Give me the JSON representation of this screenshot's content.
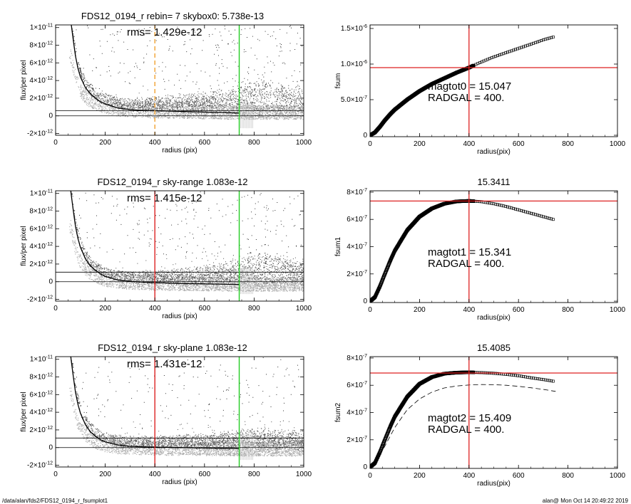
{
  "footer": {
    "left": "/data/alan/fds2/FDS12_0194_r_fsumplot1",
    "right": "alan@  Mon Oct 14 20:49:22 2019"
  },
  "colors": {
    "profile": "#000000",
    "points_dark": "#555555",
    "points_light": "#aaaaaa",
    "red": "#dd2222",
    "green": "#22cc22",
    "orange": "#f0a030"
  },
  "chart_data": [
    {
      "id": "left1",
      "type": "scatter",
      "title": "FDS12_0194_r rebin= 7    skybox0:  5.738e-13",
      "annotation": "rms= 1.429e-12",
      "xlabel": "radius (pix)",
      "ylabel": "flux/per pixel",
      "xlim": [
        0,
        1000
      ],
      "ylim": [
        -2.2e-12,
        1.03e-11
      ],
      "xticks": [
        0,
        200,
        400,
        600,
        800,
        1000
      ],
      "xtick_labels": [
        "0",
        "200",
        "400",
        "600",
        "800",
        "1000"
      ],
      "yticks": [
        -2e-12,
        0,
        2e-12,
        4e-12,
        6e-12,
        8e-12,
        1e-11
      ],
      "ytick_labels": [
        {
          "m": "-2×10",
          "e": "-12"
        },
        {
          "m": "0",
          "e": ""
        },
        {
          "m": "2×10",
          "e": "-12"
        },
        {
          "m": "4×10",
          "e": "-12"
        },
        {
          "m": "6×10",
          "e": "-12"
        },
        {
          "m": "8×10",
          "e": "-12"
        },
        {
          "m": "1×10",
          "e": "-11"
        }
      ],
      "hlines": [
        0,
        5.738e-13
      ],
      "vlines": [
        {
          "x": 400,
          "color": "orange",
          "dashed": true
        },
        {
          "x": 740,
          "color": "green",
          "dashed": false
        }
      ],
      "profile": {
        "x": [
          60,
          70,
          80,
          90,
          100,
          120,
          140,
          160,
          180,
          200,
          250,
          300,
          350,
          400,
          500,
          600,
          700,
          740
        ],
        "y": [
          1.1e-11,
          8.8e-12,
          6.8e-12,
          5.4e-12,
          4.4e-12,
          3.2e-12,
          2.5e-12,
          2e-12,
          1.6e-12,
          1.35e-12,
          9e-13,
          7e-13,
          6.2e-13,
          5.8e-13,
          5e-13,
          4.2e-13,
          3.5e-13,
          3.2e-13
        ]
      },
      "sky_trend": {
        "x": [
          0,
          200,
          400,
          600,
          700,
          780,
          850,
          900,
          1000
        ],
        "y": [
          0,
          3e-13,
          8e-13,
          1.5e-12,
          2.2e-12,
          2.8e-12,
          3e-12,
          2.5e-12,
          2e-12
        ]
      },
      "sky_sub": false
    },
    {
      "id": "right1",
      "type": "line",
      "title": "",
      "annotation_lines": [
        "magtot0 =  15.047",
        "RADGAL =    400."
      ],
      "xlabel": "radius(pix)",
      "ylabel": "fsum",
      "xlim": [
        0,
        1000
      ],
      "ylim": [
        -2e-08,
        1.55e-06
      ],
      "xticks": [
        0,
        200,
        400,
        600,
        800,
        1000
      ],
      "xtick_labels": [
        "0",
        "200",
        "400",
        "600",
        "800",
        "1000"
      ],
      "yticks": [
        0,
        5e-07,
        1e-06,
        1.5e-06
      ],
      "ytick_labels": [
        {
          "m": "0",
          "e": ""
        },
        {
          "m": "5.0×10",
          "e": "-7"
        },
        {
          "m": "1.0×10",
          "e": "-6"
        },
        {
          "m": "1.5×10",
          "e": "-6"
        }
      ],
      "hline": 9.5e-07,
      "vline": 400,
      "curve": {
        "x": [
          0,
          20,
          40,
          60,
          80,
          100,
          150,
          200,
          250,
          300,
          350,
          400,
          450,
          500,
          550,
          600,
          650,
          700,
          740
        ],
        "y": [
          0,
          4e-08,
          1.2e-07,
          2.1e-07,
          2.9e-07,
          3.6e-07,
          5e-07,
          6.2e-07,
          7.2e-07,
          8e-07,
          8.8e-07,
          9.5e-07,
          1.03e-06,
          1.1e-06,
          1.16e-06,
          1.22e-06,
          1.28e-06,
          1.34e-06,
          1.38e-06
        ]
      },
      "model": null
    },
    {
      "id": "left2",
      "type": "scatter",
      "title": "FDS12_0194_r sky-range  1.083e-12",
      "annotation": "rms= 1.415e-12",
      "xlabel": "radius (pix)",
      "ylabel": "flux/per pixel",
      "xlim": [
        0,
        1000
      ],
      "ylim": [
        -2.2e-12,
        1.03e-11
      ],
      "xticks": [
        0,
        200,
        400,
        600,
        800,
        1000
      ],
      "xtick_labels": [
        "0",
        "200",
        "400",
        "600",
        "800",
        "1000"
      ],
      "yticks": [
        -2e-12,
        0,
        2e-12,
        4e-12,
        6e-12,
        8e-12,
        1e-11
      ],
      "ytick_labels": [
        {
          "m": "-2×10",
          "e": "-12"
        },
        {
          "m": "0",
          "e": ""
        },
        {
          "m": "2×10",
          "e": "-12"
        },
        {
          "m": "4×10",
          "e": "-12"
        },
        {
          "m": "6×10",
          "e": "-12"
        },
        {
          "m": "8×10",
          "e": "-12"
        },
        {
          "m": "1×10",
          "e": "-11"
        }
      ],
      "hlines": [
        0,
        1.083e-12
      ],
      "vlines": [
        {
          "x": 400,
          "color": "red",
          "dashed": false
        },
        {
          "x": 740,
          "color": "green",
          "dashed": false
        }
      ],
      "profile": {
        "x": [
          60,
          70,
          80,
          90,
          100,
          120,
          140,
          160,
          180,
          200,
          250,
          300,
          350,
          400,
          500,
          600,
          700,
          740
        ],
        "y": [
          1.05e-11,
          8.3e-12,
          6.3e-12,
          4.9e-12,
          3.9e-12,
          2.6e-12,
          1.8e-12,
          1.3e-12,
          9e-13,
          6e-13,
          2e-13,
          5e-14,
          -5e-14,
          -1e-13,
          -2e-13,
          -2.5e-13,
          -3e-13,
          -3.2e-13
        ]
      },
      "sky_trend": {
        "x": [
          0,
          200,
          400,
          600,
          700,
          780,
          850,
          900,
          1000
        ],
        "y": [
          0,
          2e-13,
          5e-13,
          1.3e-12,
          2e-12,
          2.7e-12,
          3e-12,
          2.6e-12,
          2.2e-12
        ]
      },
      "sky_sub": true
    },
    {
      "id": "right2",
      "type": "line",
      "title": "15.3411",
      "annotation_lines": [
        "magtot1 =  15.341",
        "RADGAL =    400."
      ],
      "xlabel": "radius(pix)",
      "ylabel": "fsum1",
      "xlim": [
        0,
        1000
      ],
      "ylim": [
        -1e-08,
        8.1e-07
      ],
      "xticks": [
        0,
        200,
        400,
        600,
        800,
        1000
      ],
      "xtick_labels": [
        "0",
        "200",
        "400",
        "600",
        "800",
        "1000"
      ],
      "yticks": [
        0,
        2e-07,
        4e-07,
        6e-07,
        8e-07
      ],
      "ytick_labels": [
        {
          "m": "0",
          "e": ""
        },
        {
          "m": "2×10",
          "e": "-7"
        },
        {
          "m": "4×10",
          "e": "-7"
        },
        {
          "m": "6×10",
          "e": "-7"
        },
        {
          "m": "8×10",
          "e": "-7"
        }
      ],
      "hline": 7.35e-07,
      "vline": 400,
      "curve": {
        "x": [
          0,
          20,
          40,
          60,
          80,
          100,
          150,
          200,
          250,
          300,
          350,
          400,
          450,
          500,
          550,
          600,
          650,
          700,
          740
        ],
        "y": [
          0,
          3e-08,
          1.1e-07,
          2e-07,
          2.9e-07,
          3.7e-07,
          5.2e-07,
          6.2e-07,
          6.8e-07,
          7.15e-07,
          7.32e-07,
          7.36e-07,
          7.3e-07,
          7.15e-07,
          6.95e-07,
          6.7e-07,
          6.45e-07,
          6.2e-07,
          6e-07
        ]
      },
      "model": null
    },
    {
      "id": "left3",
      "type": "scatter",
      "title": "FDS12_0194_r sky-plane  1.083e-12",
      "annotation": "rms= 1.431e-12",
      "xlabel": "radius (pix)",
      "ylabel": "flux/per pixel",
      "xlim": [
        0,
        1000
      ],
      "ylim": [
        -2.2e-12,
        1.03e-11
      ],
      "xticks": [
        0,
        200,
        400,
        600,
        800,
        1000
      ],
      "xtick_labels": [
        "0",
        "200",
        "400",
        "600",
        "800",
        "1000"
      ],
      "yticks": [
        -2e-12,
        0,
        2e-12,
        4e-12,
        6e-12,
        8e-12,
        1e-11
      ],
      "ytick_labels": [
        {
          "m": "-2×10",
          "e": "-12"
        },
        {
          "m": "0",
          "e": ""
        },
        {
          "m": "2×10",
          "e": "-12"
        },
        {
          "m": "4×10",
          "e": "-12"
        },
        {
          "m": "6×10",
          "e": "-12"
        },
        {
          "m": "8×10",
          "e": "-12"
        },
        {
          "m": "1×10",
          "e": "-11"
        }
      ],
      "hlines": [
        0,
        1.083e-12
      ],
      "vlines": [
        {
          "x": 400,
          "color": "red",
          "dashed": false
        },
        {
          "x": 740,
          "color": "green",
          "dashed": false
        }
      ],
      "profile": {
        "x": [
          60,
          70,
          80,
          90,
          100,
          120,
          140,
          160,
          180,
          200,
          250,
          300,
          350,
          400,
          500,
          600,
          700,
          740
        ],
        "y": [
          1.05e-11,
          8.3e-12,
          6.3e-12,
          4.9e-12,
          3.9e-12,
          2.6e-12,
          1.8e-12,
          1.3e-12,
          9e-13,
          6.5e-13,
          3e-13,
          1.5e-13,
          8e-14,
          5e-14,
          0,
          -5e-14,
          -1e-13,
          -1.2e-13
        ]
      },
      "sky_trend": {
        "x": [
          0,
          200,
          400,
          600,
          700,
          780,
          850,
          900,
          1000
        ],
        "y": [
          0,
          2e-13,
          4e-13,
          8e-13,
          1.2e-12,
          1.5e-12,
          1.6e-12,
          1.4e-12,
          1.2e-12
        ]
      },
      "sky_sub": true
    },
    {
      "id": "right3",
      "type": "line",
      "title": "15.4085",
      "annotation_lines": [
        "magtot2 =  15.409",
        "RADGAL =    400."
      ],
      "xlabel": "radius(pix)",
      "ylabel": "fsum2",
      "xlim": [
        0,
        1000
      ],
      "ylim": [
        -1e-08,
        8.1e-07
      ],
      "xticks": [
        0,
        200,
        400,
        600,
        800,
        1000
      ],
      "xtick_labels": [
        "0",
        "200",
        "400",
        "600",
        "800",
        "1000"
      ],
      "yticks": [
        0,
        2e-07,
        4e-07,
        6e-07,
        8e-07
      ],
      "ytick_labels": [
        {
          "m": "0",
          "e": ""
        },
        {
          "m": "2×10",
          "e": "-7"
        },
        {
          "m": "4×10",
          "e": "-7"
        },
        {
          "m": "6×10",
          "e": "-7"
        },
        {
          "m": "8×10",
          "e": "-7"
        }
      ],
      "hline": 6.9e-07,
      "vline": 400,
      "curve": {
        "x": [
          0,
          20,
          40,
          60,
          80,
          100,
          150,
          200,
          250,
          300,
          350,
          400,
          450,
          500,
          550,
          600,
          650,
          700,
          740
        ],
        "y": [
          0,
          3e-08,
          1.1e-07,
          2e-07,
          2.9e-07,
          3.7e-07,
          5.15e-07,
          6.1e-07,
          6.6e-07,
          6.85e-07,
          6.93e-07,
          6.95e-07,
          6.93e-07,
          6.88e-07,
          6.8e-07,
          6.7e-07,
          6.55e-07,
          6.42e-07,
          6.3e-07
        ]
      },
      "model": {
        "x": [
          0,
          50,
          100,
          150,
          200,
          250,
          300,
          350,
          400,
          450,
          500,
          550,
          600,
          650,
          700,
          750
        ],
        "y": [
          0,
          1.2e-07,
          2.9e-07,
          4.2e-07,
          5e-07,
          5.5e-07,
          5.8e-07,
          5.95e-07,
          6.02e-07,
          6.05e-07,
          6.04e-07,
          6e-07,
          5.92e-07,
          5.82e-07,
          5.7e-07,
          5.55e-07
        ]
      }
    }
  ]
}
